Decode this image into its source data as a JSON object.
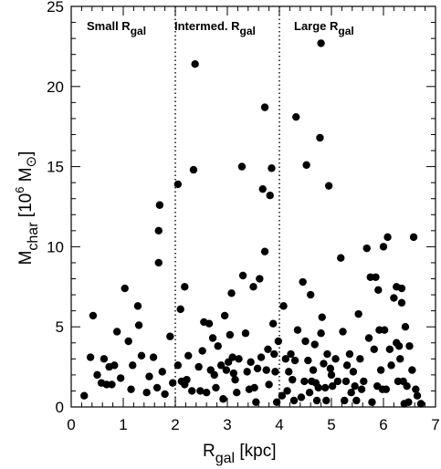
{
  "chart_data": {
    "type": "scatter",
    "xlabel": {
      "main": "R",
      "sub": "gal",
      "unit": "[kpc]"
    },
    "ylabel": {
      "main": "M",
      "sub": "char",
      "unit_open": "[10",
      "exp": "6",
      "unit_m": "M",
      "sun": "⊙",
      "unit_close": "]"
    },
    "xlim": [
      0,
      7
    ],
    "ylim": [
      0,
      25
    ],
    "xticks": [
      "0",
      "1",
      "2",
      "3",
      "4",
      "5",
      "6",
      "7"
    ],
    "yticks": [
      "0",
      "5",
      "10",
      "15",
      "20",
      "25"
    ],
    "dividers": [
      2,
      4
    ],
    "regions": [
      {
        "main": "Small R",
        "sub": "gal"
      },
      {
        "main": "Intermed. R",
        "sub": "gal"
      },
      {
        "main": "Large R",
        "sub": "gal"
      }
    ],
    "points": [
      [
        0.25,
        0.7
      ],
      [
        0.37,
        3.1
      ],
      [
        0.42,
        5.7
      ],
      [
        0.5,
        2.0
      ],
      [
        0.58,
        1.5
      ],
      [
        0.63,
        3.0
      ],
      [
        0.68,
        1.4
      ],
      [
        0.73,
        2.5
      ],
      [
        0.78,
        1.4
      ],
      [
        0.83,
        2.6
      ],
      [
        0.88,
        4.7
      ],
      [
        0.95,
        1.8
      ],
      [
        1.03,
        7.4
      ],
      [
        1.1,
        4.1
      ],
      [
        1.18,
        2.6
      ],
      [
        1.15,
        1.1
      ],
      [
        1.28,
        6.3
      ],
      [
        1.3,
        5.1
      ],
      [
        1.35,
        3.2
      ],
      [
        1.45,
        0.9
      ],
      [
        1.5,
        1.9
      ],
      [
        1.58,
        3.1
      ],
      [
        1.65,
        1.2
      ],
      [
        1.68,
        9.0
      ],
      [
        1.68,
        11.0
      ],
      [
        1.7,
        12.6
      ],
      [
        1.75,
        2.2
      ],
      [
        1.8,
        0.8
      ],
      [
        1.9,
        4.4
      ],
      [
        1.95,
        1.5
      ],
      [
        2.05,
        13.9
      ],
      [
        2.1,
        6.1
      ],
      [
        2.18,
        7.5
      ],
      [
        2.05,
        2.6
      ],
      [
        2.12,
        1.6
      ],
      [
        2.18,
        1.4
      ],
      [
        2.22,
        1.7
      ],
      [
        2.25,
        3.2
      ],
      [
        2.32,
        1.0
      ],
      [
        2.38,
        21.4
      ],
      [
        2.35,
        14.8
      ],
      [
        2.45,
        2.5
      ],
      [
        2.48,
        1.0
      ],
      [
        2.52,
        3.5
      ],
      [
        2.55,
        5.3
      ],
      [
        2.6,
        0.9
      ],
      [
        2.65,
        5.2
      ],
      [
        2.68,
        2.3
      ],
      [
        2.72,
        4.3
      ],
      [
        2.75,
        2.0
      ],
      [
        2.78,
        1.2
      ],
      [
        2.82,
        3.8
      ],
      [
        2.88,
        2.6
      ],
      [
        2.92,
        0.5
      ],
      [
        2.95,
        5.7
      ],
      [
        2.98,
        2.3
      ],
      [
        3.02,
        2.8
      ],
      [
        3.05,
        4.5
      ],
      [
        3.08,
        7.1
      ],
      [
        3.1,
        3.1
      ],
      [
        3.12,
        2.1
      ],
      [
        3.15,
        1.7
      ],
      [
        3.18,
        0.9
      ],
      [
        3.22,
        3.0
      ],
      [
        3.28,
        15.0
      ],
      [
        3.3,
        8.2
      ],
      [
        3.35,
        4.6
      ],
      [
        3.38,
        2.2
      ],
      [
        3.42,
        1.1
      ],
      [
        3.45,
        2.8
      ],
      [
        3.5,
        7.5
      ],
      [
        3.52,
        1.2
      ],
      [
        3.55,
        0.3
      ],
      [
        3.58,
        2.4
      ],
      [
        3.62,
        8.0
      ],
      [
        3.65,
        3.1
      ],
      [
        3.68,
        13.6
      ],
      [
        3.72,
        18.7
      ],
      [
        3.72,
        9.7
      ],
      [
        3.75,
        2.3
      ],
      [
        3.78,
        3.6
      ],
      [
        3.8,
        1.4
      ],
      [
        3.82,
        13.2
      ],
      [
        3.85,
        14.9
      ],
      [
        3.88,
        5.2
      ],
      [
        3.9,
        3.3
      ],
      [
        3.92,
        2.2
      ],
      [
        3.95,
        0.3
      ],
      [
        3.98,
        4.1
      ],
      [
        4.05,
        0.7
      ],
      [
        4.08,
        6.3
      ],
      [
        4.12,
        3.0
      ],
      [
        4.15,
        1.0
      ],
      [
        4.18,
        2.2
      ],
      [
        4.22,
        3.3
      ],
      [
        4.25,
        1.7
      ],
      [
        4.28,
        0.4
      ],
      [
        4.3,
        2.9
      ],
      [
        4.32,
        18.1
      ],
      [
        4.35,
        4.8
      ],
      [
        4.42,
        0.6
      ],
      [
        4.45,
        7.8
      ],
      [
        4.48,
        1.6
      ],
      [
        4.5,
        4.1
      ],
      [
        4.52,
        15.1
      ],
      [
        4.55,
        2.9
      ],
      [
        4.58,
        0.9
      ],
      [
        4.62,
        1.6
      ],
      [
        4.65,
        2.3
      ],
      [
        4.68,
        3.9
      ],
      [
        4.7,
        1.5
      ],
      [
        4.72,
        0.4
      ],
      [
        4.75,
        1.2
      ],
      [
        4.78,
        16.8
      ],
      [
        4.8,
        22.7
      ],
      [
        4.82,
        5.6
      ],
      [
        4.8,
        4.6
      ],
      [
        4.85,
        2.7
      ],
      [
        4.88,
        1.2
      ],
      [
        4.9,
        0.4
      ],
      [
        4.92,
        3.3
      ],
      [
        4.95,
        13.8
      ],
      [
        4.98,
        2.4
      ],
      [
        5.02,
        1.3
      ],
      [
        5.08,
        3.0
      ],
      [
        5.12,
        1.6
      ],
      [
        5.18,
        9.3
      ],
      [
        5.22,
        4.7
      ],
      [
        5.25,
        0.4
      ],
      [
        5.28,
        1.6
      ],
      [
        5.3,
        2.6
      ],
      [
        5.35,
        3.3
      ],
      [
        5.38,
        0.9
      ],
      [
        5.42,
        2.2
      ],
      [
        5.45,
        1.3
      ],
      [
        5.48,
        0.4
      ],
      [
        5.52,
        5.8
      ],
      [
        5.55,
        3.0
      ],
      [
        5.58,
        1.1
      ],
      [
        5.62,
        1.6
      ],
      [
        5.68,
        9.9
      ],
      [
        5.72,
        4.3
      ],
      [
        5.75,
        8.1
      ],
      [
        5.78,
        0.3
      ],
      [
        5.82,
        3.6
      ],
      [
        5.85,
        8.1
      ],
      [
        5.88,
        1.3
      ],
      [
        5.9,
        7.3
      ],
      [
        5.92,
        4.8
      ],
      [
        5.95,
        2.3
      ],
      [
        5.98,
        1.1
      ],
      [
        6.0,
        10.0
      ],
      [
        6.02,
        4.8
      ],
      [
        6.05,
        1.1
      ],
      [
        6.08,
        10.6
      ],
      [
        6.12,
        3.6
      ],
      [
        6.15,
        2.6
      ],
      [
        6.2,
        6.8
      ],
      [
        6.25,
        4.0
      ],
      [
        6.28,
        1.6
      ],
      [
        6.3,
        3.8
      ],
      [
        6.32,
        3.0
      ],
      [
        6.35,
        6.5
      ],
      [
        6.38,
        1.6
      ],
      [
        6.4,
        0.2
      ],
      [
        6.42,
        5.0
      ],
      [
        6.45,
        1.3
      ],
      [
        6.48,
        0.3
      ],
      [
        6.5,
        3.8
      ],
      [
        6.55,
        2.3
      ],
      [
        6.58,
        10.6
      ],
      [
        6.62,
        1.1
      ],
      [
        6.65,
        0.7
      ],
      [
        6.72,
        0.2
      ],
      [
        6.25,
        7.5
      ],
      [
        6.35,
        7.4
      ],
      [
        5.0,
        2.0
      ],
      [
        4.6,
        7.0
      ]
    ]
  }
}
